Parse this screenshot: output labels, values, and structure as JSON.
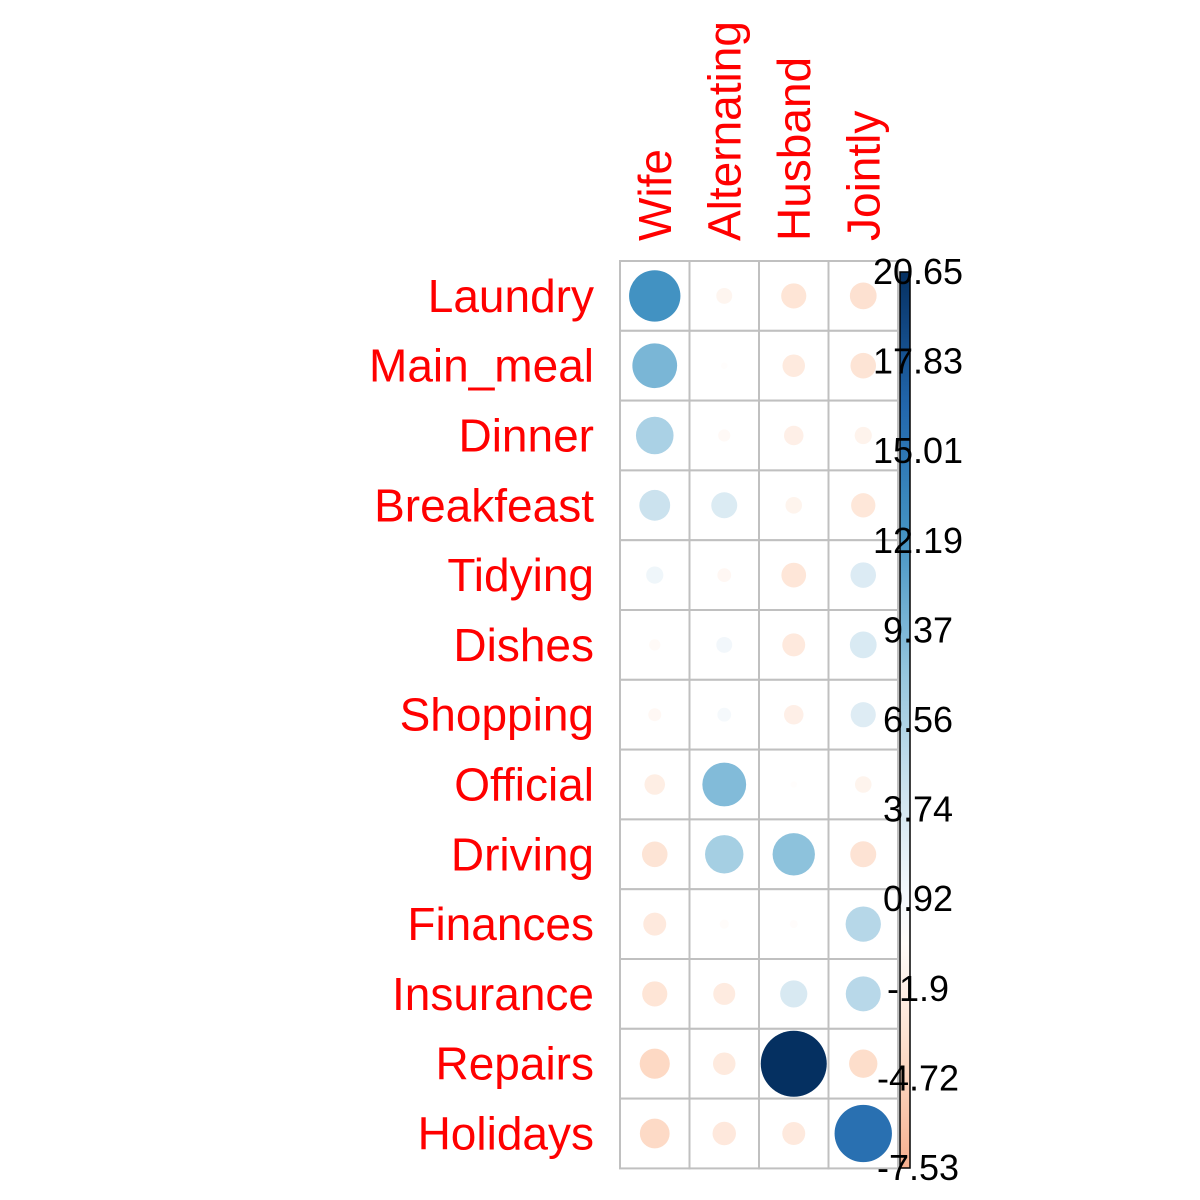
{
  "chart_data": {
    "type": "heatmap",
    "rows": [
      "Laundry",
      "Main_meal",
      "Dinner",
      "Breakfeast",
      "Tidying",
      "Dishes",
      "Shopping",
      "Official",
      "Driving",
      "Finances",
      "Insurance",
      "Repairs",
      "Holidays"
    ],
    "columns": [
      "Wife",
      "Alternating",
      "Husband",
      "Jointly"
    ],
    "values": [
      [
        12.5,
        -1.2,
        -3.0,
        -3.4
      ],
      [
        9.5,
        -0.2,
        -2.4,
        -3.1
      ],
      [
        6.7,
        -0.7,
        -1.8,
        -1.4
      ],
      [
        4.5,
        3.2,
        -1.3,
        -2.8
      ],
      [
        1.4,
        -0.9,
        -2.9,
        3.1
      ],
      [
        -0.6,
        1.2,
        -2.5,
        3.4
      ],
      [
        -0.8,
        0.9,
        -1.8,
        3.0
      ],
      [
        -2.0,
        9.1,
        -0.2,
        -1.3
      ],
      [
        -3.1,
        7.0,
        8.5,
        -3.2
      ],
      [
        -2.5,
        -0.4,
        -0.3,
        5.9
      ],
      [
        -3.0,
        -2.3,
        3.5,
        5.8
      ],
      [
        -4.3,
        -2.4,
        20.65,
        -3.8
      ],
      [
        -4.2,
        -2.6,
        -2.5,
        15.6
      ]
    ],
    "color_scale": {
      "min": -7.53,
      "max": 20.65,
      "ticks": [
        "20.65",
        "17.83",
        "15.01",
        "12.19",
        "9.37",
        "6.56",
        "3.74",
        "0.92",
        "-1.9",
        "-4.72",
        "-7.53"
      ],
      "negative_color": "#67001f",
      "zero_color": "#ffffff",
      "positive_color": "#053061"
    },
    "grid": true,
    "legend_position": "right"
  }
}
